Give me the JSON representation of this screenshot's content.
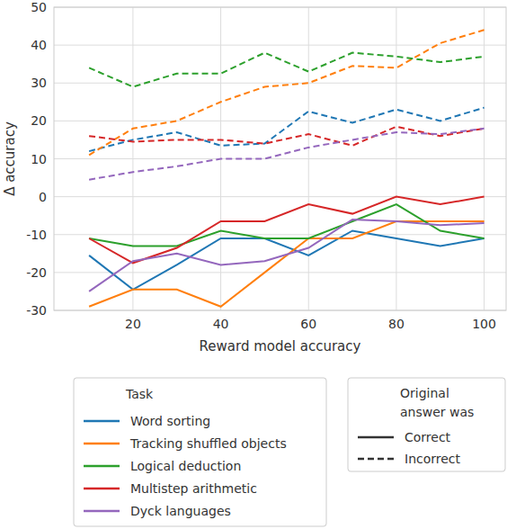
{
  "chart_data": {
    "type": "line",
    "x_label": "Reward model accuracy",
    "y_label": "Δ accuracy",
    "x": [
      10,
      20,
      30,
      40,
      50,
      60,
      70,
      80,
      90,
      100
    ],
    "xlim": [
      2,
      105
    ],
    "xticks": [
      20,
      40,
      60,
      80,
      100
    ],
    "ylim": [
      -30,
      50
    ],
    "yticks": [
      -30,
      -20,
      -10,
      0,
      10,
      20,
      30,
      40,
      50
    ],
    "grid": true,
    "legend": "bottom",
    "legend_title": "Task",
    "style_legend": {
      "title": "Original answer was",
      "entries": [
        {
          "label": "Correct",
          "line_style": "solid"
        },
        {
          "label": "Incorrect",
          "line_style": "dashed"
        }
      ]
    },
    "series": [
      {
        "name": "Word sorting",
        "color": "#1f77b4",
        "line_style": "solid",
        "values": [
          -15.5,
          -24.5,
          -18,
          -11,
          -11,
          -15.5,
          -9,
          -11,
          -13,
          -11
        ]
      },
      {
        "name": "Tracking shuffled objects",
        "color": "#ff7f0e",
        "line_style": "solid",
        "values": [
          -29,
          -24.5,
          -24.5,
          -29,
          -20,
          -11,
          -11,
          -6.5,
          -6.5,
          -6.5
        ]
      },
      {
        "name": "Logical deduction",
        "color": "#2ca02c",
        "line_style": "solid",
        "values": [
          -11,
          -13,
          -13,
          -9,
          -11,
          -11,
          -6.5,
          -2,
          -9,
          -11
        ]
      },
      {
        "name": "Multistep arithmetic",
        "color": "#d62728",
        "line_style": "solid",
        "values": [
          -11,
          -17.5,
          -13.5,
          -6.5,
          -6.5,
          -2,
          -4.5,
          0,
          -2,
          0
        ]
      },
      {
        "name": "Dyck languages",
        "color": "#9467bd",
        "line_style": "solid",
        "values": [
          -25,
          -17,
          -15,
          -18,
          -17,
          -13.5,
          -6,
          -6.5,
          -7.5,
          -7
        ]
      },
      {
        "name": "Word sorting",
        "color": "#1f77b4",
        "line_style": "dashed",
        "values": [
          12,
          15,
          17,
          13.5,
          14,
          22.5,
          19.5,
          23,
          20,
          23.5
        ]
      },
      {
        "name": "Tracking shuffled objects",
        "color": "#ff7f0e",
        "line_style": "dashed",
        "values": [
          11,
          18,
          20,
          25,
          29,
          30,
          34.5,
          34,
          40.5,
          44
        ]
      },
      {
        "name": "Logical deduction",
        "color": "#2ca02c",
        "line_style": "dashed",
        "values": [
          34,
          29,
          32.5,
          32.5,
          38,
          33,
          38,
          37,
          35.5,
          37
        ]
      },
      {
        "name": "Multistep arithmetic",
        "color": "#d62728",
        "line_style": "dashed",
        "values": [
          16,
          14.5,
          15,
          15,
          14,
          16.5,
          13.5,
          18.5,
          16,
          18
        ]
      },
      {
        "name": "Dyck languages",
        "color": "#9467bd",
        "line_style": "dashed",
        "values": [
          4.5,
          6.5,
          8,
          10,
          10,
          13,
          15,
          17,
          16.5,
          18
        ]
      }
    ]
  }
}
